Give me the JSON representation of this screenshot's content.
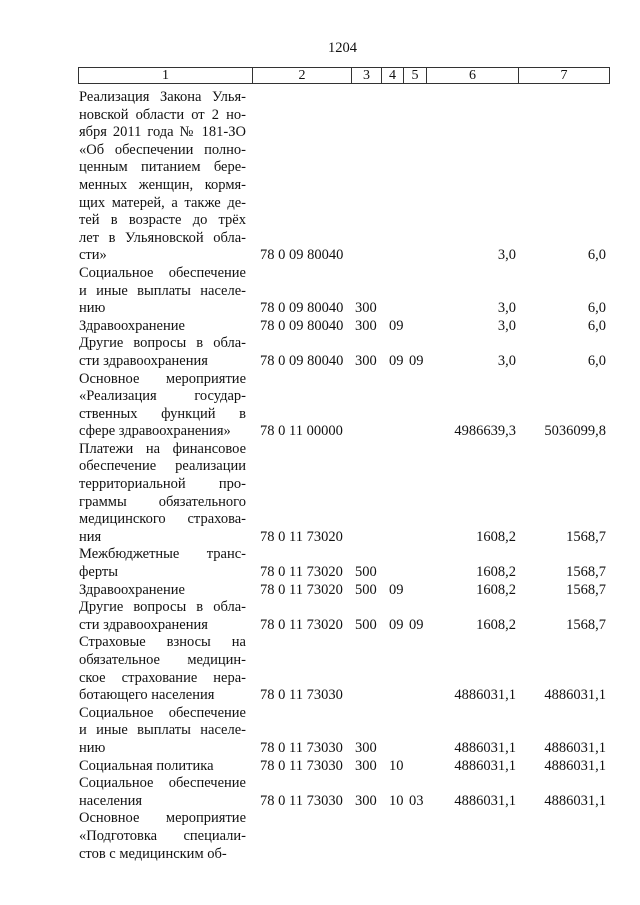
{
  "page_number": "1204",
  "header": [
    "1",
    "2",
    "3",
    "4",
    "5",
    "6",
    "7"
  ],
  "rows": [
    {
      "lines": [
        "Реализация Закона Улья-",
        "новской области от 2 но-",
        "ября 2011 года № 181-ЗО",
        "«Об обеспечении полно-",
        "ценным питанием бере-",
        "менных женщин, кормя-",
        "щих матерей, а также де-",
        "тей в возрасте до трёх",
        "лет в Ульяновской обла-",
        "сти»"
      ],
      "code": "78 0 09 80040",
      "c3": "",
      "c4": "",
      "c5": "",
      "c6": "3,0",
      "c7": "6,0"
    },
    {
      "lines": [
        "Социальное обеспечение",
        "и иные выплаты населе-",
        "нию"
      ],
      "code": "78 0 09 80040",
      "c3": "300",
      "c4": "",
      "c5": "",
      "c6": "3,0",
      "c7": "6,0"
    },
    {
      "lines": [
        "Здравоохранение"
      ],
      "code": "78 0 09 80040",
      "c3": "300",
      "c4": "09",
      "c5": "",
      "c6": "3,0",
      "c7": "6,0"
    },
    {
      "lines": [
        "Другие вопросы в обла-",
        "сти здравоохранения"
      ],
      "code": "78 0 09 80040",
      "c3": "300",
      "c4": "09",
      "c5": "09",
      "c6": "3,0",
      "c7": "6,0"
    },
    {
      "lines": [
        "Основное мероприятие",
        "«Реализация государ-",
        "ственных функций в",
        "сфере здравоохранения»"
      ],
      "code": "78 0 11 00000",
      "c3": "",
      "c4": "",
      "c5": "",
      "c6": "4986639,3",
      "c7": "5036099,8"
    },
    {
      "lines": [
        "Платежи на финансовое",
        "обеспечение реализации",
        "территориальной про-",
        "граммы обязательного",
        "медицинского страхова-",
        "ния"
      ],
      "code": "78 0 11 73020",
      "c3": "",
      "c4": "",
      "c5": "",
      "c6": "1608,2",
      "c7": "1568,7"
    },
    {
      "lines": [
        "Межбюджетные транс-",
        "ферты"
      ],
      "code": "78 0 11 73020",
      "c3": "500",
      "c4": "",
      "c5": "",
      "c6": "1608,2",
      "c7": "1568,7"
    },
    {
      "lines": [
        "Здравоохранение"
      ],
      "code": "78 0 11 73020",
      "c3": "500",
      "c4": "09",
      "c5": "",
      "c6": "1608,2",
      "c7": "1568,7"
    },
    {
      "lines": [
        "Другие вопросы в обла-",
        "сти здравоохранения"
      ],
      "code": "78 0 11 73020",
      "c3": "500",
      "c4": "09",
      "c5": "09",
      "c6": "1608,2",
      "c7": "1568,7"
    },
    {
      "lines": [
        "Страховые взносы на",
        "обязательное медицин-",
        "ское страхование нера-",
        "ботающего населения"
      ],
      "code": "78 0 11 73030",
      "c3": "",
      "c4": "",
      "c5": "",
      "c6": "4886031,1",
      "c7": "4886031,1"
    },
    {
      "lines": [
        "Социальное обеспечение",
        "и иные выплаты населе-",
        "нию"
      ],
      "code": "78 0 11 73030",
      "c3": "300",
      "c4": "",
      "c5": "",
      "c6": "4886031,1",
      "c7": "4886031,1"
    },
    {
      "lines": [
        "Социальная политика"
      ],
      "code": "78 0 11 73030",
      "c3": "300",
      "c4": "10",
      "c5": "",
      "c6": "4886031,1",
      "c7": "4886031,1"
    },
    {
      "lines": [
        "Социальное обеспечение",
        "населения"
      ],
      "code": "78 0 11 73030",
      "c3": "300",
      "c4": "10",
      "c5": "03",
      "c6": "4886031,1",
      "c7": "4886031,1"
    },
    {
      "lines": [
        "Основное мероприятие",
        "«Подготовка специали-",
        "стов с медицинским об-"
      ],
      "code": "",
      "c3": "",
      "c4": "",
      "c5": "",
      "c6": "",
      "c7": ""
    }
  ]
}
